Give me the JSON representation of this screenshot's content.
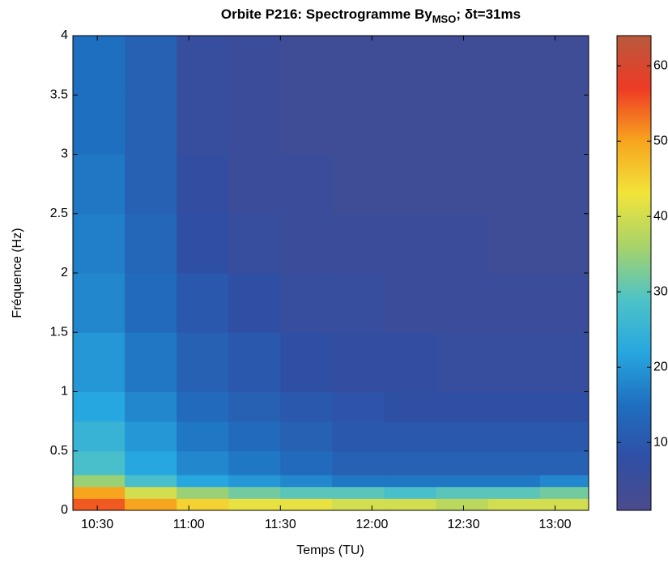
{
  "chart_data": {
    "type": "spectrogram",
    "title": "Orbite P216: Spectrogramme By",
    "title_subscript": "MSO",
    "title_suffix": "; δt=31ms",
    "xlabel": "Temps (TU)",
    "ylabel": "Fréquence (Hz)",
    "xlim": [
      "10:22",
      "13:11"
    ],
    "xticks": [
      "10:30",
      "11:00",
      "11:30",
      "12:00",
      "12:30",
      "13:00"
    ],
    "ylim": [
      0,
      4
    ],
    "yticks": [
      0,
      0.5,
      1,
      1.5,
      2,
      2.5,
      3,
      3.5,
      4
    ],
    "time_bins": [
      "10:22",
      "10:39",
      "10:56",
      "11:13",
      "11:30",
      "11:47",
      "12:04",
      "12:21",
      "12:38",
      "12:55",
      "13:11"
    ],
    "freq_bins": [
      0,
      0.1,
      0.2,
      0.3,
      0.5,
      0.75,
      1,
      1.5,
      2,
      2.5,
      3,
      3.5,
      4
    ],
    "values": [
      [
        55,
        50,
        45,
        42,
        42,
        40,
        40,
        38,
        40,
        40
      ],
      [
        50,
        40,
        35,
        32,
        30,
        30,
        28,
        30,
        30,
        32
      ],
      [
        35,
        28,
        22,
        20,
        18,
        16,
        16,
        16,
        16,
        18
      ],
      [
        28,
        22,
        18,
        16,
        14,
        12,
        12,
        12,
        12,
        12
      ],
      [
        25,
        20,
        16,
        14,
        12,
        10,
        10,
        10,
        10,
        10
      ],
      [
        22,
        18,
        14,
        12,
        10,
        9,
        8,
        8,
        8,
        8
      ],
      [
        20,
        16,
        12,
        10,
        8,
        7,
        7,
        6,
        6,
        6
      ],
      [
        18,
        14,
        10,
        8,
        6,
        6,
        5,
        5,
        5,
        5
      ],
      [
        17,
        13,
        8,
        6,
        5,
        5,
        5,
        5,
        4,
        4
      ],
      [
        16,
        12,
        7,
        5,
        5,
        4,
        4,
        4,
        4,
        4
      ],
      [
        15,
        12,
        6,
        5,
        4,
        4,
        4,
        4,
        4,
        4
      ],
      [
        15,
        12,
        6,
        5,
        4,
        4,
        4,
        4,
        4,
        4
      ]
    ],
    "clim": [
      1,
      64
    ],
    "cticks": [
      10,
      20,
      30,
      40,
      50,
      60
    ],
    "colormap": [
      "#4b4b8c",
      "#2f4fa5",
      "#1f6fc0",
      "#27a7df",
      "#4ec3c7",
      "#a7d36a",
      "#f2e43a",
      "#f7a51e",
      "#ee3a24",
      "#b85a3e"
    ]
  }
}
